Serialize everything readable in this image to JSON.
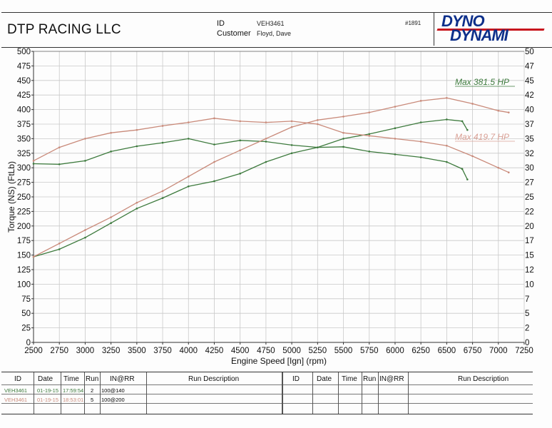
{
  "header": {
    "company": "DTP RACING LLC",
    "id_label": "ID",
    "id_value": "VEH3461",
    "customer_label": "Customer",
    "customer_value": "Floyd, Dave",
    "sheet_number": "#1891",
    "logo_line1": "DYNO",
    "logo_line2": "DYNAMI"
  },
  "table": {
    "headers_left": {
      "id": "ID",
      "date": "Date",
      "time": "Time",
      "run": "Run",
      "inrr": "IN@RR",
      "desc": "Run Description"
    },
    "headers_right": {
      "id": "ID",
      "date": "Date",
      "time": "Time",
      "run": "Run",
      "inrr": "IN@RR",
      "desc": "Run Description"
    },
    "rows": [
      {
        "id": "VEH3461",
        "date": "01-19-15",
        "time": "17:59:54",
        "run": "2",
        "inrr": "100@140",
        "color": "#3d7a3d"
      },
      {
        "id": "VEH3461",
        "date": "01-19-15",
        "time": "18:53:01",
        "run": "5",
        "inrr": "100@200",
        "color": "#c98a7a"
      }
    ]
  },
  "chart_data": {
    "type": "line",
    "xlabel": "Engine Speed [Ign] (rpm)",
    "ylabel": "Torque (NS) (FtLb)",
    "xlim": [
      2500,
      7250
    ],
    "ylim": [
      0,
      500
    ],
    "y2lim": [
      0,
      500
    ],
    "x_ticks": [
      2500,
      2750,
      3000,
      3250,
      3500,
      3750,
      4000,
      4250,
      4500,
      4750,
      5000,
      5250,
      5500,
      5750,
      6000,
      6250,
      6500,
      6750,
      7000,
      7250
    ],
    "y_ticks": [
      0,
      25,
      50,
      75,
      100,
      125,
      150,
      175,
      200,
      225,
      250,
      275,
      300,
      325,
      350,
      375,
      400,
      425,
      450,
      475,
      500
    ],
    "y2_ticks": [
      "0",
      "2",
      "5",
      "7",
      "10",
      "12",
      "15",
      "17",
      "20",
      "22",
      "25",
      "27",
      "30",
      "32",
      "35",
      "37",
      "40",
      "42",
      "45",
      "47",
      "50"
    ],
    "grid": true,
    "annotations": [
      {
        "text": "Max 381.5 HP",
        "color": "#3d7a3d"
      },
      {
        "text": "Max 419.7 HP",
        "color": "#d9a095"
      }
    ],
    "series": [
      {
        "kind": "torque",
        "run": "2",
        "color": "#3d7a3d",
        "x": [
          2500,
          2750,
          3000,
          3250,
          3500,
          3750,
          4000,
          4250,
          4500,
          4750,
          5000,
          5250,
          5500,
          5750,
          6000,
          6250,
          6500,
          6650,
          6700
        ],
        "y": [
          307,
          306,
          312,
          328,
          337,
          343,
          350,
          340,
          347,
          345,
          339,
          335,
          336,
          328,
          323,
          318,
          310,
          298,
          280
        ]
      },
      {
        "kind": "power",
        "run": "2",
        "color": "#3d7a3d",
        "x": [
          2500,
          2750,
          3000,
          3250,
          3500,
          3750,
          4000,
          4250,
          4500,
          4750,
          5000,
          5250,
          5500,
          5750,
          6000,
          6250,
          6500,
          6650,
          6700
        ],
        "y": [
          147,
          160,
          180,
          205,
          230,
          248,
          268,
          277,
          290,
          310,
          325,
          335,
          350,
          358,
          368,
          378,
          383,
          380,
          365
        ]
      },
      {
        "kind": "torque",
        "run": "5",
        "color": "#c98a7a",
        "x": [
          2500,
          2750,
          3000,
          3250,
          3500,
          3750,
          4000,
          4250,
          4500,
          4750,
          5000,
          5250,
          5500,
          5750,
          6000,
          6250,
          6500,
          6750,
          7000,
          7100
        ],
        "y": [
          312,
          335,
          350,
          360,
          365,
          372,
          378,
          385,
          380,
          378,
          380,
          375,
          360,
          355,
          350,
          345,
          338,
          320,
          300,
          292
        ]
      },
      {
        "kind": "power",
        "run": "5",
        "color": "#c98a7a",
        "x": [
          2500,
          2750,
          3000,
          3250,
          3500,
          3750,
          4000,
          4250,
          4500,
          4750,
          5000,
          5250,
          5500,
          5750,
          6000,
          6250,
          6500,
          6750,
          7000,
          7100
        ],
        "y": [
          147,
          170,
          193,
          215,
          240,
          260,
          285,
          310,
          330,
          350,
          370,
          382,
          388,
          395,
          405,
          415,
          420,
          410,
          398,
          395
        ]
      }
    ]
  }
}
